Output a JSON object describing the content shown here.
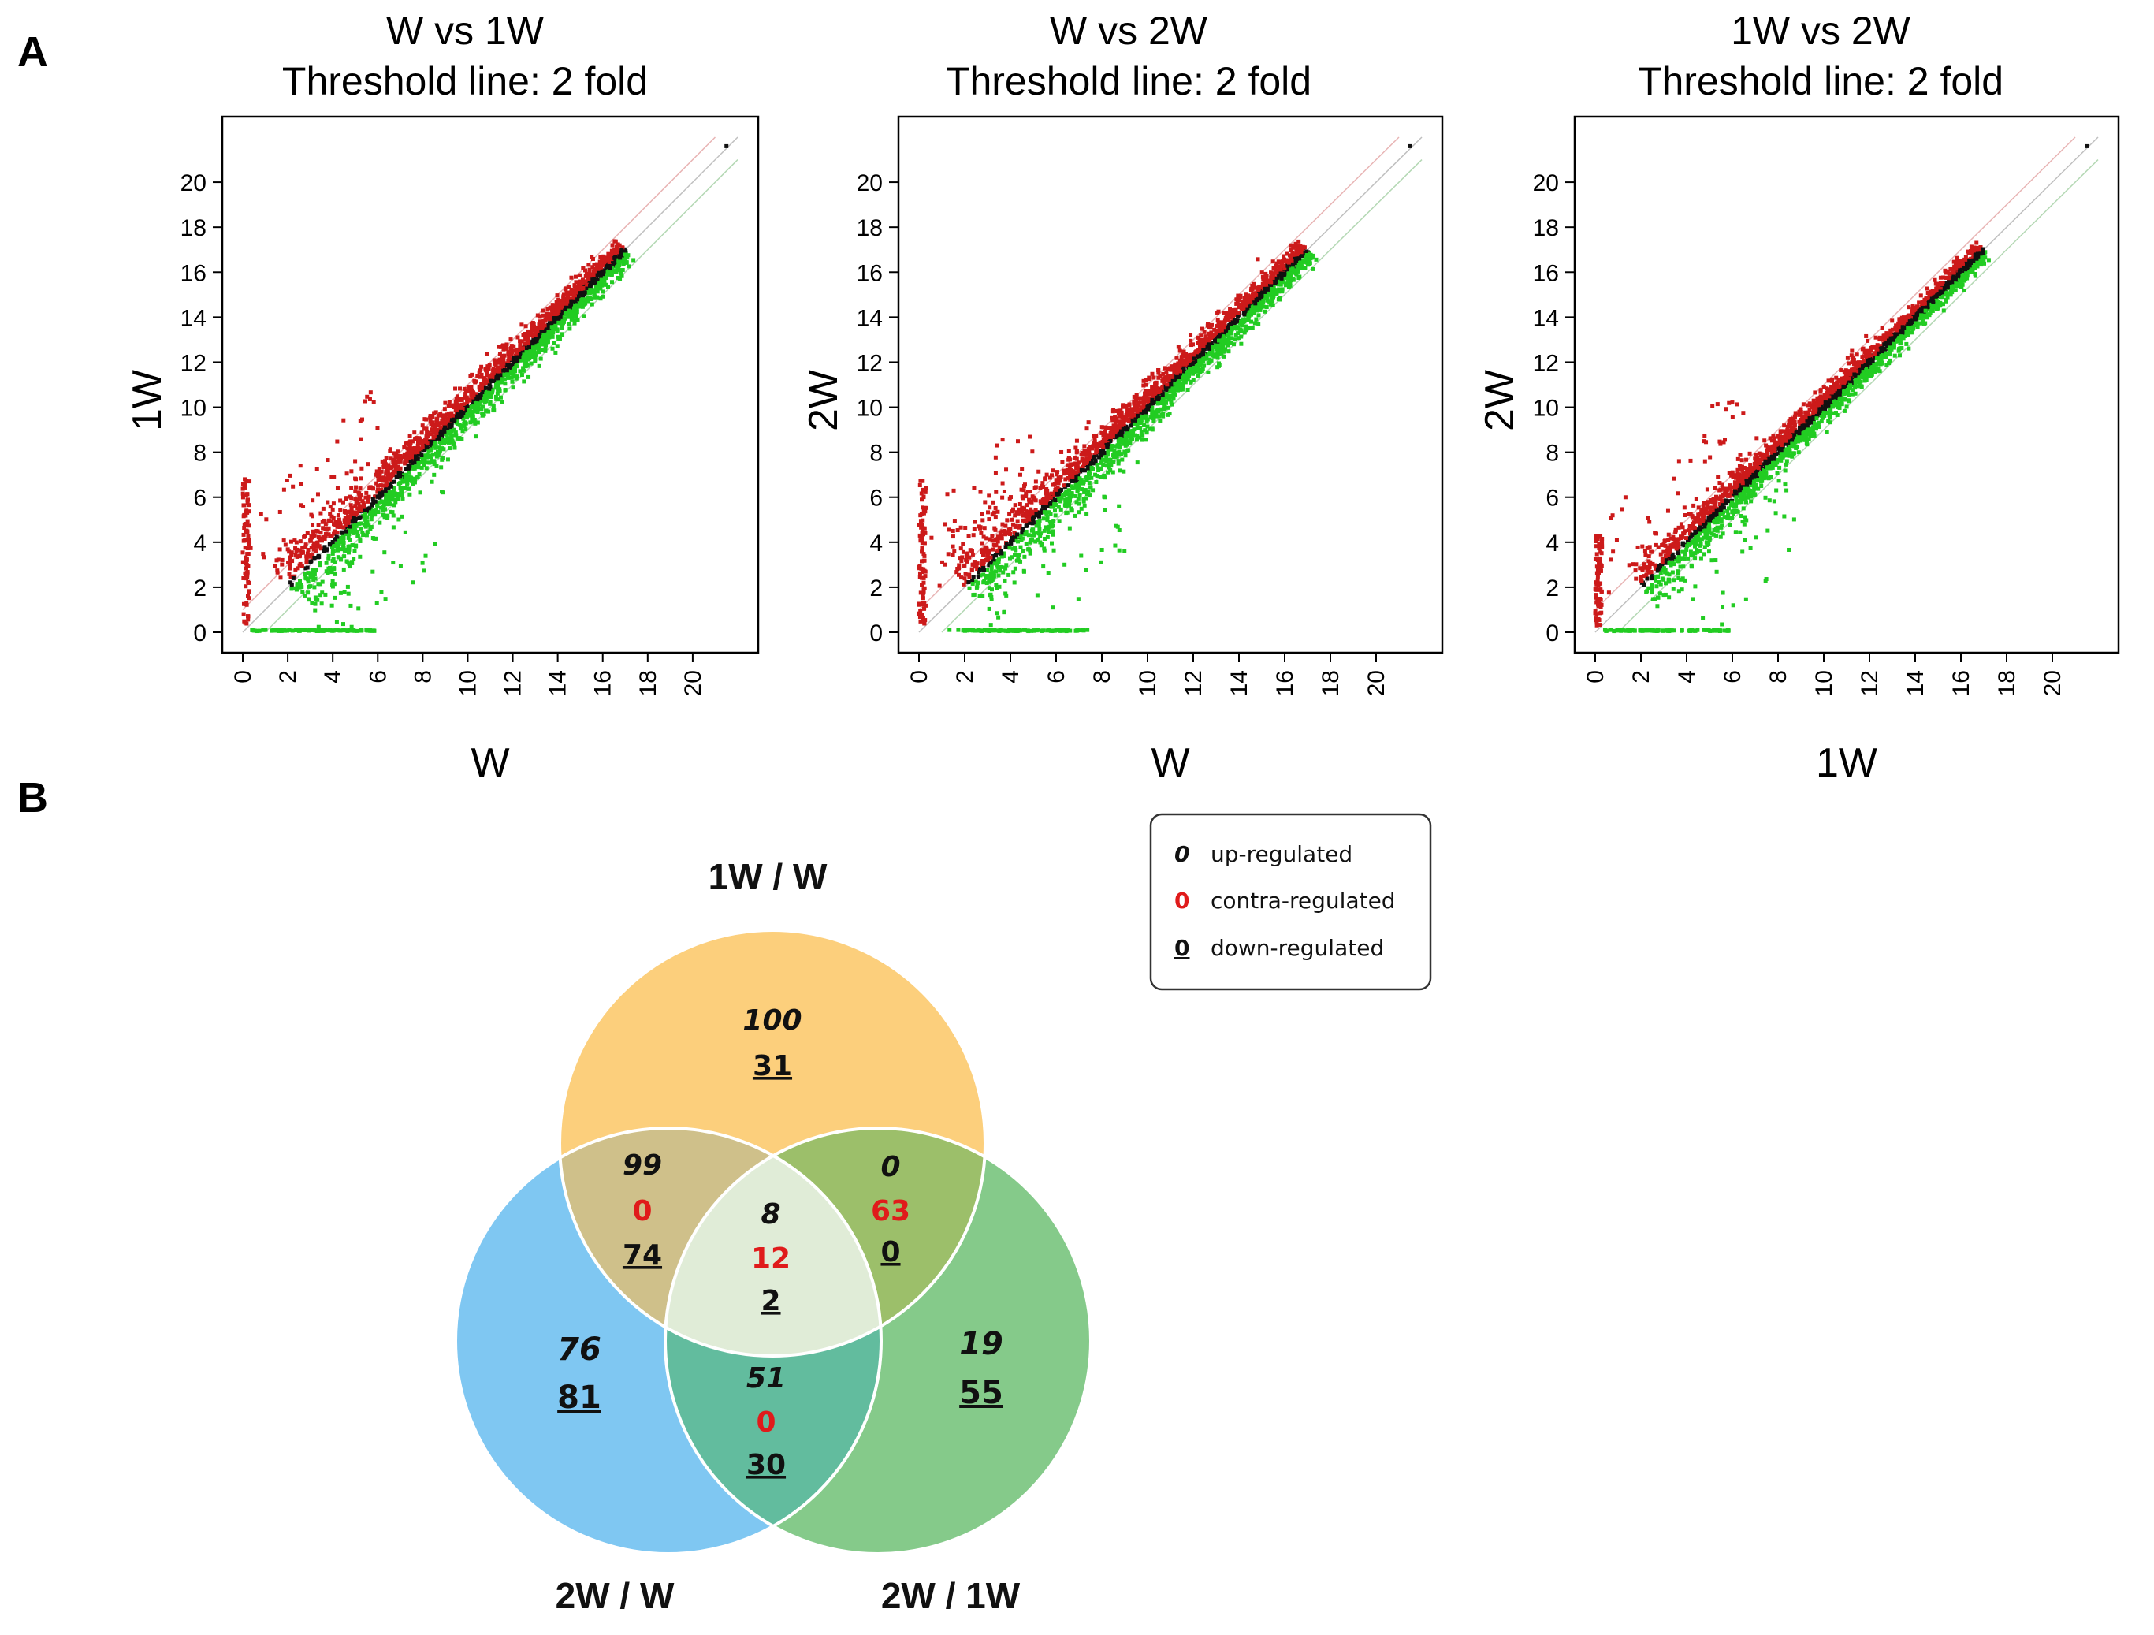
{
  "figure": {
    "panel_a_label": "A",
    "panel_b_label": "B"
  },
  "chart_data": [
    {
      "type": "scatter",
      "title": "W vs 1W",
      "subtitle": "Threshold line: 2 fold",
      "xlabel": "W",
      "ylabel": "1W",
      "xlim": [
        0,
        22
      ],
      "ylim": [
        0,
        22
      ],
      "xticks": [
        "0",
        "2",
        "4",
        "6",
        "8",
        "10",
        "12",
        "14",
        "16",
        "18",
        "20"
      ],
      "yticks": [
        "0",
        "2",
        "4",
        "6",
        "8",
        "10",
        "12",
        "14",
        "16",
        "18",
        "20"
      ],
      "series": [
        {
          "name": "up",
          "color": "#cc1a1a"
        },
        {
          "name": "unchanged",
          "color": "#111111"
        },
        {
          "name": "down",
          "color": "#22cc22"
        }
      ],
      "threshold_lines": [
        "y = x",
        "y = x + 1",
        "y = x - 1"
      ]
    },
    {
      "type": "scatter",
      "title": "W vs 2W",
      "subtitle": "Threshold line: 2 fold",
      "xlabel": "W",
      "ylabel": "2W",
      "xlim": [
        0,
        22
      ],
      "ylim": [
        0,
        22
      ],
      "xticks": [
        "0",
        "2",
        "4",
        "6",
        "8",
        "10",
        "12",
        "14",
        "16",
        "18",
        "20"
      ],
      "yticks": [
        "0",
        "2",
        "4",
        "6",
        "8",
        "10",
        "12",
        "14",
        "16",
        "18",
        "20"
      ],
      "series": [
        {
          "name": "up",
          "color": "#cc1a1a"
        },
        {
          "name": "unchanged",
          "color": "#111111"
        },
        {
          "name": "down",
          "color": "#22cc22"
        }
      ],
      "threshold_lines": [
        "y = x",
        "y = x + 1",
        "y = x - 1"
      ]
    },
    {
      "type": "scatter",
      "title": "1W vs 2W",
      "subtitle": "Threshold line: 2 fold",
      "xlabel": "1W",
      "ylabel": "2W",
      "xlim": [
        0,
        22
      ],
      "ylim": [
        0,
        22
      ],
      "xticks": [
        "0",
        "2",
        "4",
        "6",
        "8",
        "10",
        "12",
        "14",
        "16",
        "18",
        "20"
      ],
      "yticks": [
        "0",
        "2",
        "4",
        "6",
        "8",
        "10",
        "12",
        "14",
        "16",
        "18",
        "20"
      ],
      "series": [
        {
          "name": "up",
          "color": "#cc1a1a"
        },
        {
          "name": "unchanged",
          "color": "#111111"
        },
        {
          "name": "down",
          "color": "#22cc22"
        }
      ],
      "threshold_lines": [
        "y = x",
        "y = x + 1",
        "y = x - 1"
      ]
    },
    {
      "type": "venn",
      "sets": [
        {
          "name": "1W / W",
          "color": "#fccf7c"
        },
        {
          "name": "2W / W",
          "color": "#7fc7f2"
        },
        {
          "name": "2W / 1W",
          "color": "#85ca8a"
        }
      ],
      "regions": [
        {
          "id": "1W/W only",
          "up": "100",
          "down": "31"
        },
        {
          "id": "2W/W only",
          "up": "76",
          "down": "81"
        },
        {
          "id": "2W/1W only",
          "up": "19",
          "down": "55"
        },
        {
          "id": "1W/W & 2W/W",
          "up": "99",
          "contra": "0",
          "down": "74"
        },
        {
          "id": "1W/W & 2W/1W",
          "up": "0",
          "contra": "63",
          "down": "0"
        },
        {
          "id": "2W/W & 2W/1W",
          "up": "51",
          "contra": "0",
          "down": "30"
        },
        {
          "id": "all three",
          "up": "8",
          "contra": "12",
          "down": "2"
        }
      ],
      "legend": [
        {
          "symbol": "0",
          "label": "up-regulated",
          "style": "italic"
        },
        {
          "symbol": "0",
          "label": "contra-regulated",
          "style": "red"
        },
        {
          "symbol": "0",
          "label": "down-regulated",
          "style": "underline"
        }
      ]
    }
  ]
}
